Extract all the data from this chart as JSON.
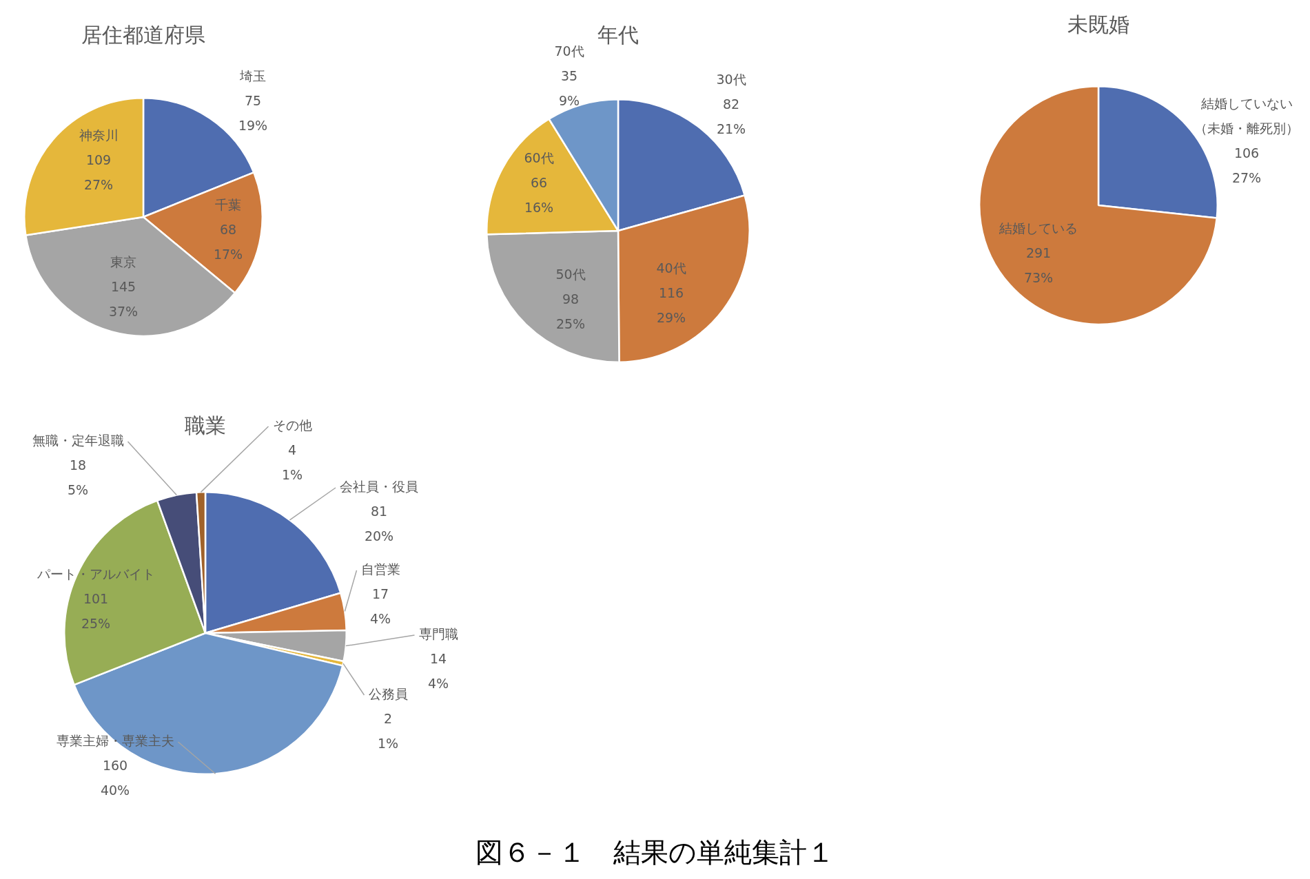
{
  "chart_data": [
    {
      "type": "pie",
      "title": "居住都道府県",
      "categories": [
        "埼玉",
        "千葉",
        "東京",
        "神奈川"
      ],
      "values": [
        75,
        68,
        145,
        109
      ],
      "colors": [
        "#4f6db0",
        "#cd7a3d",
        "#a5a5a5",
        "#e5b73b"
      ],
      "value_labels": [
        "75\n19%",
        "68\n17%",
        "145\n37%",
        "109\n27%"
      ],
      "annotations": [
        "図６－１　結果の単純集計１"
      ]
    },
    {
      "type": "pie",
      "title": "年代",
      "categories": [
        "30代",
        "40代",
        "50代",
        "60代",
        "70代"
      ],
      "values": [
        82,
        116,
        98,
        66,
        35
      ],
      "colors": [
        "#4f6db0",
        "#cd7a3d",
        "#a5a5a5",
        "#e5b73b",
        "#6e96c8"
      ],
      "value_labels": [
        "82\n21%",
        "116\n29%",
        "98\n25%",
        "66\n16%",
        "35\n9%"
      ]
    },
    {
      "type": "pie",
      "title": "未既婚",
      "categories": [
        "結婚していない（未婚・離死別）",
        "結婚している"
      ],
      "values": [
        106,
        291
      ],
      "colors": [
        "#4f6db0",
        "#cd7a3d"
      ],
      "value_labels": [
        "106\n27%",
        "291\n73%"
      ]
    },
    {
      "type": "pie",
      "title": "職業",
      "categories": [
        "会社員・役員",
        "自営業",
        "専門職",
        "公務員",
        "専業主婦・専業主夫",
        "パート・アルバイト",
        "無職・定年退職",
        "その他"
      ],
      "values": [
        81,
        17,
        14,
        2,
        160,
        101,
        18,
        4
      ],
      "colors": [
        "#4f6db0",
        "#cd7a3d",
        "#a5a5a5",
        "#e5b73b",
        "#6e96c8",
        "#97ad55",
        "#464d78",
        "#a0622a"
      ],
      "value_labels": [
        "81\n20%",
        "17\n4%",
        "14\n4%",
        "2\n1%",
        "160\n40%",
        "101\n25%",
        "18\n5%",
        "4\n1%"
      ]
    }
  ]
}
